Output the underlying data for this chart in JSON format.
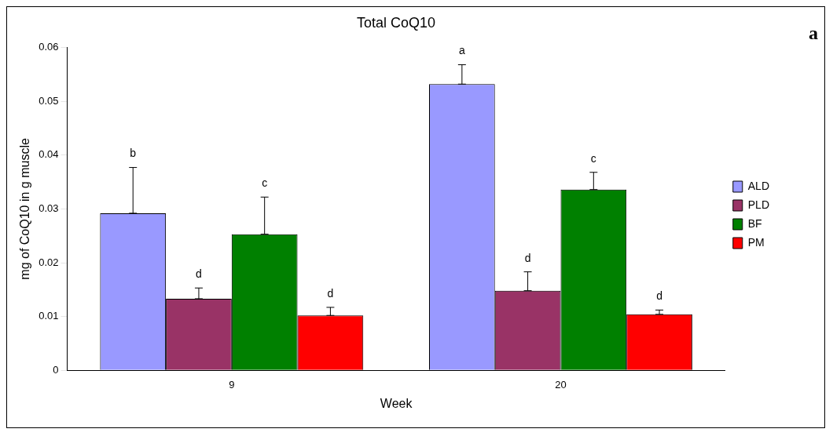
{
  "chart_data": {
    "type": "bar",
    "title": "Total CoQ10",
    "xlabel": "Week",
    "ylabel": "mg of CoQ10 in g muscle",
    "categories": [
      "9",
      "20"
    ],
    "series": [
      {
        "name": "ALD",
        "color": "#9999ff",
        "values": [
          0.0292,
          0.0532
        ],
        "errors": [
          [
            0.0292,
            0.0377
          ],
          [
            0.0532,
            0.0568
          ]
        ]
      },
      {
        "name": "PLD",
        "color": "#993366",
        "values": [
          0.0133,
          0.0148
        ],
        "errors": [
          [
            0.0133,
            0.0153
          ],
          [
            0.0148,
            0.0183
          ]
        ]
      },
      {
        "name": "BF",
        "color": "#008000",
        "values": [
          0.0253,
          0.0336
        ],
        "errors": [
          [
            0.0253,
            0.0322
          ],
          [
            0.0336,
            0.0368
          ]
        ]
      },
      {
        "name": "PM",
        "color": "#ff0000",
        "values": [
          0.0102,
          0.0104
        ],
        "errors": [
          [
            0.0102,
            0.0117
          ],
          [
            0.0104,
            0.0112
          ]
        ]
      }
    ],
    "ylim": [
      0,
      0.06
    ],
    "yticks": [
      0,
      0.01,
      0.02,
      0.03,
      0.04,
      0.05,
      0.06
    ],
    "grid": false,
    "legend": "right",
    "annotations": [
      "b",
      "d",
      "c",
      "d",
      "a",
      "d",
      "c",
      "d",
      "a"
    ]
  }
}
